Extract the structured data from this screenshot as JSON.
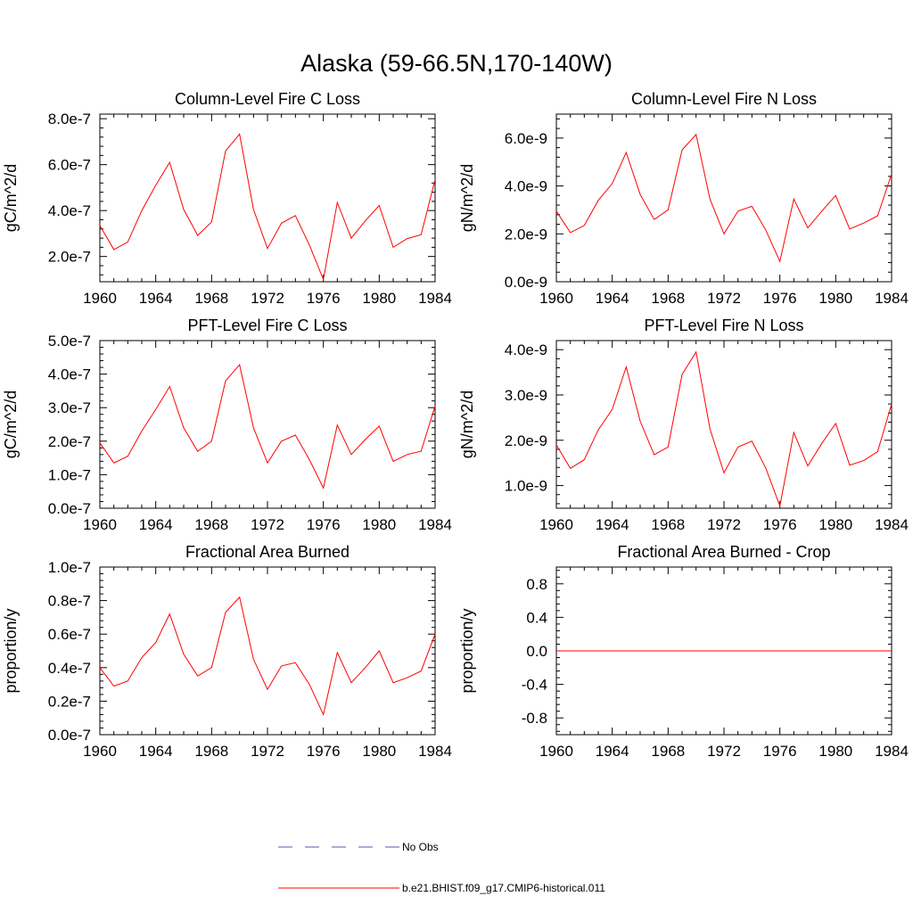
{
  "figure": {
    "title": "Alaska (59-66.5N,170-140W)"
  },
  "chart_data": [
    {
      "type": "line",
      "title": "Column-Level Fire C Loss",
      "ylabel": "gC/m^2/d",
      "ylim": [
        9e-08,
        8.2e-07
      ],
      "xlim": [
        1960,
        1984
      ],
      "xticks": [
        1960,
        1964,
        1968,
        1972,
        1976,
        1980,
        1984
      ],
      "yticks": [
        2e-07,
        4e-07,
        6e-07,
        8e-07
      ],
      "ytick_labels": [
        "2.0e-7",
        "4.0e-7",
        "6.0e-7",
        "8.0e-7"
      ],
      "x": [
        1960,
        1961,
        1962,
        1963,
        1964,
        1965,
        1966,
        1967,
        1968,
        1969,
        1970,
        1971,
        1972,
        1973,
        1974,
        1975,
        1976,
        1977,
        1978,
        1979,
        1980,
        1981,
        1982,
        1983,
        1984
      ],
      "series": [
        {
          "values": [
            3.35e-07,
            2.3e-07,
            2.63e-07,
            4e-07,
            5.1e-07,
            6.1e-07,
            4.05e-07,
            2.92e-07,
            3.5e-07,
            6.6e-07,
            7.33e-07,
            4.05e-07,
            2.35e-07,
            3.45e-07,
            3.78e-07,
            2.5e-07,
            1e-07,
            4.35e-07,
            2.8e-07,
            3.55e-07,
            4.22e-07,
            2.4e-07,
            2.78e-07,
            2.95e-07,
            5.35e-07
          ],
          "color": "#ff0000"
        }
      ]
    },
    {
      "type": "line",
      "title": "Column-Level Fire N Loss",
      "ylabel": "gN/m^2/d",
      "ylim": [
        0,
        7e-09
      ],
      "xlim": [
        1960,
        1984
      ],
      "xticks": [
        1960,
        1964,
        1968,
        1972,
        1976,
        1980,
        1984
      ],
      "yticks": [
        0,
        2e-09,
        4e-09,
        6e-09
      ],
      "ytick_labels": [
        "0.0e-9",
        "2.0e-9",
        "4.0e-9",
        "6.0e-9"
      ],
      "x": [
        1960,
        1961,
        1962,
        1963,
        1964,
        1965,
        1966,
        1967,
        1968,
        1969,
        1970,
        1971,
        1972,
        1973,
        1974,
        1975,
        1976,
        1977,
        1978,
        1979,
        1980,
        1981,
        1982,
        1983,
        1984
      ],
      "series": [
        {
          "values": [
            2.95e-09,
            2.05e-09,
            2.35e-09,
            3.4e-09,
            4.1e-09,
            5.4e-09,
            3.65e-09,
            2.6e-09,
            3e-09,
            5.5e-09,
            6.15e-09,
            3.45e-09,
            2e-09,
            2.95e-09,
            3.15e-09,
            2.15e-09,
            8.5e-10,
            3.45e-09,
            2.25e-09,
            2.95e-09,
            3.6e-09,
            2.2e-09,
            2.45e-09,
            2.75e-09,
            4.5e-09
          ],
          "color": "#ff0000"
        }
      ]
    },
    {
      "type": "line",
      "title": "PFT-Level Fire C Loss",
      "ylabel": "gC/m^2/d",
      "ylim": [
        0,
        5e-07
      ],
      "xlim": [
        1960,
        1984
      ],
      "xticks": [
        1960,
        1964,
        1968,
        1972,
        1976,
        1980,
        1984
      ],
      "yticks": [
        0,
        1e-07,
        2e-07,
        3e-07,
        4e-07,
        5e-07
      ],
      "ytick_labels": [
        "0.0e-7",
        "1.0e-7",
        "2.0e-7",
        "3.0e-7",
        "4.0e-7",
        "5.0e-7"
      ],
      "x": [
        1960,
        1961,
        1962,
        1963,
        1964,
        1965,
        1966,
        1967,
        1968,
        1969,
        1970,
        1971,
        1972,
        1973,
        1974,
        1975,
        1976,
        1977,
        1978,
        1979,
        1980,
        1981,
        1982,
        1983,
        1984
      ],
      "series": [
        {
          "values": [
            1.95e-07,
            1.35e-07,
            1.55e-07,
            2.3e-07,
            2.95e-07,
            3.63e-07,
            2.4e-07,
            1.7e-07,
            2e-07,
            3.8e-07,
            4.28e-07,
            2.4e-07,
            1.35e-07,
            2e-07,
            2.18e-07,
            1.45e-07,
            6e-08,
            2.48e-07,
            1.6e-07,
            2.05e-07,
            2.45e-07,
            1.4e-07,
            1.6e-07,
            1.7e-07,
            3.05e-07
          ],
          "color": "#ff0000"
        }
      ]
    },
    {
      "type": "line",
      "title": "PFT-Level Fire N Loss",
      "ylabel": "gN/m^2/d",
      "ylim": [
        5e-10,
        4.2e-09
      ],
      "xlim": [
        1960,
        1984
      ],
      "xticks": [
        1960,
        1964,
        1968,
        1972,
        1976,
        1980,
        1984
      ],
      "yticks": [
        1e-09,
        2e-09,
        3e-09,
        4e-09
      ],
      "ytick_labels": [
        "1.0e-9",
        "2.0e-9",
        "3.0e-9",
        "4.0e-9"
      ],
      "x": [
        1960,
        1961,
        1962,
        1963,
        1964,
        1965,
        1966,
        1967,
        1968,
        1969,
        1970,
        1971,
        1972,
        1973,
        1974,
        1975,
        1976,
        1977,
        1978,
        1979,
        1980,
        1981,
        1982,
        1983,
        1984
      ],
      "series": [
        {
          "values": [
            1.9e-09,
            1.38e-09,
            1.57e-09,
            2.23e-09,
            2.68e-09,
            3.62e-09,
            2.42e-09,
            1.68e-09,
            1.85e-09,
            3.45e-09,
            3.95e-09,
            2.25e-09,
            1.28e-09,
            1.85e-09,
            1.98e-09,
            1.38e-09,
            5.5e-10,
            2.17e-09,
            1.43e-09,
            1.93e-09,
            2.37e-09,
            1.45e-09,
            1.55e-09,
            1.75e-09,
            2.8e-09
          ],
          "color": "#ff0000"
        }
      ]
    },
    {
      "type": "line",
      "title": "Fractional Area Burned",
      "ylabel": "proportion/y",
      "ylim": [
        0,
        1e-07
      ],
      "xlim": [
        1960,
        1984
      ],
      "xticks": [
        1960,
        1964,
        1968,
        1972,
        1976,
        1980,
        1984
      ],
      "yticks": [
        0,
        2e-08,
        4e-08,
        6e-08,
        8e-08,
        1e-07
      ],
      "ytick_labels": [
        "0.0e-7",
        "0.2e-7",
        "0.4e-7",
        "0.6e-7",
        "0.8e-7",
        "1.0e-7"
      ],
      "x": [
        1960,
        1961,
        1962,
        1963,
        1964,
        1965,
        1966,
        1967,
        1968,
        1969,
        1970,
        1971,
        1972,
        1973,
        1974,
        1975,
        1976,
        1977,
        1978,
        1979,
        1980,
        1981,
        1982,
        1983,
        1984
      ],
      "series": [
        {
          "values": [
            4e-08,
            2.9e-08,
            3.2e-08,
            4.6e-08,
            5.5e-08,
            7.2e-08,
            4.8e-08,
            3.5e-08,
            4e-08,
            7.3e-08,
            8.2e-08,
            4.5e-08,
            2.7e-08,
            4.1e-08,
            4.3e-08,
            3e-08,
            1.2e-08,
            4.9e-08,
            3.1e-08,
            4e-08,
            5e-08,
            3.1e-08,
            3.4e-08,
            3.8e-08,
            6e-08
          ],
          "color": "#ff0000"
        }
      ]
    },
    {
      "type": "line",
      "title": "Fractional Area Burned - Crop",
      "ylabel": "proportion/y",
      "ylim": [
        -1.0,
        1.0
      ],
      "xlim": [
        1960,
        1984
      ],
      "xticks": [
        1960,
        1964,
        1968,
        1972,
        1976,
        1980,
        1984
      ],
      "yticks": [
        -0.8,
        -0.4,
        0.0,
        0.4,
        0.8
      ],
      "ytick_labels": [
        "-0.8",
        "-0.4",
        "0.0",
        "0.4",
        "0.8"
      ],
      "x": [
        1960,
        1984
      ],
      "series": [
        {
          "values": [
            0,
            0
          ],
          "color": "#ff0000"
        }
      ]
    }
  ],
  "legend": {
    "items": [
      {
        "label": "No Obs",
        "style": "dashed",
        "color": "#5a5aa8"
      },
      {
        "label": "b.e21.BHIST.f09_g17.CMIP6-historical.011",
        "style": "solid",
        "color": "#ff0000"
      }
    ]
  }
}
